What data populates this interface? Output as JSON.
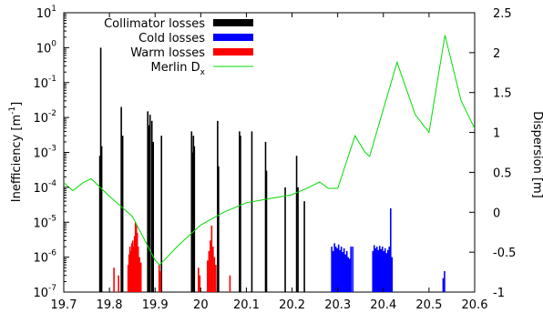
{
  "chart_data": {
    "type": "bar",
    "title": "",
    "xlabel": "",
    "ylabel": "Inefficiency [m⁻¹]",
    "y2label": "Dispersion [m]",
    "ylabel_parts": [
      "Inefficiency [m",
      "-1",
      "]"
    ],
    "x_ticks": [
      "19.7",
      "19.8",
      "19.9",
      "20",
      "20.1",
      "20.2",
      "20.3",
      "20.4",
      "20.5",
      "20.6"
    ],
    "y_ticks": [
      {
        "base": "10",
        "exp": "1"
      },
      {
        "base": "10",
        "exp": "0"
      },
      {
        "base": "10",
        "exp": "-1"
      },
      {
        "base": "10",
        "exp": "-2"
      },
      {
        "base": "10",
        "exp": "-3"
      },
      {
        "base": "10",
        "exp": "-4"
      },
      {
        "base": "10",
        "exp": "-5"
      },
      {
        "base": "10",
        "exp": "-6"
      },
      {
        "base": "10",
        "exp": "-7"
      }
    ],
    "y2_ticks": [
      "2.5",
      "2",
      "1.5",
      "1",
      "0.5",
      "0",
      "-0.5",
      "-1"
    ],
    "xlim": [
      19.7,
      20.6
    ],
    "ylim": [
      1e-07,
      10
    ],
    "y2lim": [
      -1,
      2.5
    ],
    "yscale": "log",
    "legend_position": "top-left",
    "series": [
      {
        "name": "Collimator losses",
        "color": "#000000",
        "kind": "bar",
        "points": [
          [
            19.779,
            0.0008
          ],
          [
            19.781,
            1.0
          ],
          [
            19.783,
            0.0015
          ],
          [
            19.826,
            0.02
          ],
          [
            19.829,
            0.003
          ],
          [
            19.884,
            0.015
          ],
          [
            19.887,
            0.006
          ],
          [
            19.889,
            0.012
          ],
          [
            19.893,
            0.008
          ],
          [
            19.896,
            0.002
          ],
          [
            19.914,
            0.003
          ],
          [
            19.98,
            0.004
          ],
          [
            19.982,
            0.001
          ],
          [
            19.984,
            0.003
          ],
          [
            19.986,
            0.0015
          ],
          [
            20.037,
            0.008
          ],
          [
            20.039,
            0.0004
          ],
          [
            20.085,
            0.004
          ],
          [
            20.087,
            0.003
          ],
          [
            20.112,
            0.004
          ],
          [
            20.142,
            0.002
          ],
          [
            20.144,
            0.0003
          ],
          [
            20.185,
            0.0001
          ],
          [
            20.21,
            0.0008
          ],
          [
            20.213,
            0.0001
          ],
          [
            20.227,
            4e-05
          ]
        ]
      },
      {
        "name": "Cold losses",
        "color": "#0000ff",
        "kind": "bar",
        "points": [
          [
            20.287,
            2e-06
          ],
          [
            20.29,
            1.5e-06
          ],
          [
            20.293,
            2.5e-06
          ],
          [
            20.296,
            2e-06
          ],
          [
            20.299,
            1.8e-06
          ],
          [
            20.302,
            2.3e-06
          ],
          [
            20.305,
            1.6e-06
          ],
          [
            20.308,
            2e-06
          ],
          [
            20.311,
            1.4e-06
          ],
          [
            20.314,
            1.8e-06
          ],
          [
            20.317,
            1.2e-06
          ],
          [
            20.32,
            1.5e-06
          ],
          [
            20.323,
            1e-06
          ],
          [
            20.326,
            9e-07
          ],
          [
            20.329,
            2e-06
          ],
          [
            20.333,
            2e-06
          ],
          [
            20.377,
            1.5e-06
          ],
          [
            20.38,
            2.2e-06
          ],
          [
            20.383,
            1.8e-06
          ],
          [
            20.386,
            2e-06
          ],
          [
            20.389,
            1.6e-06
          ],
          [
            20.392,
            2.1e-06
          ],
          [
            20.395,
            1.7e-06
          ],
          [
            20.398,
            2e-06
          ],
          [
            20.401,
            1.5e-06
          ],
          [
            20.404,
            1.8e-06
          ],
          [
            20.407,
            1.3e-06
          ],
          [
            20.41,
            1.6e-06
          ],
          [
            20.413,
            2e-06
          ],
          [
            20.416,
            2.5e-05
          ],
          [
            20.419,
            1e-06
          ],
          [
            20.531,
            2.5e-07
          ],
          [
            20.534,
            4e-07
          ]
        ]
      },
      {
        "name": "Warm losses",
        "color": "#ff0000",
        "kind": "bar",
        "points": [
          [
            19.81,
            5e-07
          ],
          [
            19.82,
            3e-07
          ],
          [
            19.841,
            6e-07
          ],
          [
            19.843,
            1.2e-06
          ],
          [
            19.845,
            2e-06
          ],
          [
            19.847,
            1.5e-06
          ],
          [
            19.849,
            2.5e-06
          ],
          [
            19.851,
            3e-06
          ],
          [
            19.853,
            2e-06
          ],
          [
            19.855,
            4e-06
          ],
          [
            19.857,
            1e-05
          ],
          [
            19.859,
            8e-06
          ],
          [
            19.861,
            5e-06
          ],
          [
            19.863,
            2e-06
          ],
          [
            19.866,
            1e-06
          ],
          [
            19.869,
            7e-07
          ],
          [
            19.909,
            6e-07
          ],
          [
            19.912,
            4e-07
          ],
          [
            19.995,
            5e-07
          ],
          [
            19.998,
            3e-07
          ],
          [
            20.015,
            8e-07
          ],
          [
            20.018,
            1.5e-06
          ],
          [
            20.021,
            3e-06
          ],
          [
            20.024,
            8e-06
          ],
          [
            20.027,
            2e-06
          ],
          [
            20.03,
            1e-06
          ],
          [
            20.033,
            6e-07
          ],
          [
            20.064,
            3e-07
          ]
        ]
      },
      {
        "name": "Merlin D",
        "name_sub": "x",
        "color": "#00dd00",
        "kind": "line",
        "axis": "right",
        "points": [
          [
            19.7,
            0.37
          ],
          [
            19.72,
            0.27
          ],
          [
            19.742,
            0.37
          ],
          [
            19.76,
            0.42
          ],
          [
            19.8,
            0.2
          ],
          [
            19.85,
            -0.05
          ],
          [
            19.9,
            -0.6
          ],
          [
            19.91,
            -0.66
          ],
          [
            19.95,
            -0.42
          ],
          [
            20.0,
            -0.16
          ],
          [
            20.05,
            0.0
          ],
          [
            20.1,
            0.12
          ],
          [
            20.15,
            0.17
          ],
          [
            20.2,
            0.22
          ],
          [
            20.24,
            0.32
          ],
          [
            20.26,
            0.38
          ],
          [
            20.28,
            0.3
          ],
          [
            20.3,
            0.3
          ],
          [
            20.338,
            0.96
          ],
          [
            20.36,
            0.75
          ],
          [
            20.37,
            0.7
          ],
          [
            20.43,
            1.88
          ],
          [
            20.47,
            1.22
          ],
          [
            20.5,
            1.0
          ],
          [
            20.535,
            2.22
          ],
          [
            20.57,
            1.4
          ],
          [
            20.6,
            1.05
          ]
        ]
      }
    ]
  }
}
